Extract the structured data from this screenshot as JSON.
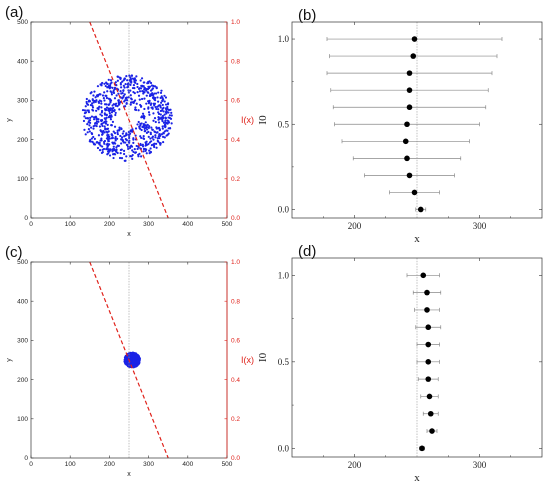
{
  "chart_data": [
    {
      "panel": "(a)",
      "type": "scatter",
      "title": "",
      "xlabel": "x",
      "ylabel": "y",
      "y2label": "I(x)",
      "xlim": [
        0,
        500
      ],
      "ylim": [
        0,
        500
      ],
      "y2lim": [
        0,
        1.0
      ],
      "xticks": [
        "0",
        "100",
        "200",
        "300",
        "400",
        "500"
      ],
      "yticks": [
        "0",
        "100",
        "200",
        "300",
        "400",
        "500"
      ],
      "y2ticks": [
        "0.0",
        "0.2",
        "0.4",
        "0.6",
        "0.8",
        "1.0"
      ],
      "scatter": {
        "shape": "ring",
        "count": 800,
        "cx": 245,
        "cy": 255,
        "inner_radius": 30,
        "outer_radius": 115,
        "color": "#1a22e6"
      },
      "vline_x": 250,
      "dashed_line": {
        "axis": "y2",
        "points": [
          [
            150,
            1.0
          ],
          [
            350,
            0.0
          ]
        ],
        "color": "#e0221b"
      }
    },
    {
      "panel": "(b)",
      "type": "errorbar",
      "title": "",
      "xlabel": "x",
      "ylabel": "I0",
      "xlim": [
        150,
        350
      ],
      "ylim": [
        -0.05,
        1.1
      ],
      "xticks": [
        "200",
        "300"
      ],
      "yticks": [
        "0.0",
        "0.5",
        "1.0"
      ],
      "vline_x": 250,
      "points": [
        {
          "y": 0.0,
          "x": 253,
          "err": 4
        },
        {
          "y": 0.1,
          "x": 248,
          "err": 20
        },
        {
          "y": 0.2,
          "x": 244,
          "err": 36
        },
        {
          "y": 0.3,
          "x": 242,
          "err": 43
        },
        {
          "y": 0.4,
          "x": 241,
          "err": 51
        },
        {
          "y": 0.5,
          "x": 242,
          "err": 58
        },
        {
          "y": 0.6,
          "x": 244,
          "err": 61
        },
        {
          "y": 0.7,
          "x": 244,
          "err": 63
        },
        {
          "y": 0.8,
          "x": 244,
          "err": 66
        },
        {
          "y": 0.9,
          "x": 247,
          "err": 67
        },
        {
          "y": 1.0,
          "x": 248,
          "err": 70
        }
      ]
    },
    {
      "panel": "(c)",
      "type": "scatter",
      "title": "",
      "xlabel": "x",
      "ylabel": "y",
      "y2label": "I(x)",
      "xlim": [
        0,
        500
      ],
      "ylim": [
        0,
        500
      ],
      "y2lim": [
        0,
        1.0
      ],
      "xticks": [
        "0",
        "100",
        "200",
        "300",
        "400",
        "500"
      ],
      "yticks": [
        "0",
        "100",
        "200",
        "300",
        "400",
        "500"
      ],
      "y2ticks": [
        "0.0",
        "0.2",
        "0.4",
        "0.6",
        "0.8",
        "1.0"
      ],
      "scatter": {
        "shape": "disk",
        "count": 500,
        "cx": 258,
        "cy": 250,
        "inner_radius": 0,
        "outer_radius": 20,
        "color": "#1a22e6"
      },
      "vline_x": 250,
      "dashed_line": {
        "axis": "y2",
        "points": [
          [
            150,
            1.0
          ],
          [
            350,
            0.0
          ]
        ],
        "color": "#e0221b"
      }
    },
    {
      "panel": "(d)",
      "type": "errorbar",
      "title": "",
      "xlabel": "x",
      "ylabel": "I0",
      "xlim": [
        150,
        350
      ],
      "ylim": [
        -0.05,
        1.1
      ],
      "xticks": [
        "200",
        "300"
      ],
      "yticks": [
        "0.0",
        "0.5",
        "1.0"
      ],
      "vline_x": 250,
      "points": [
        {
          "y": 0.0,
          "x": 254,
          "err": 2
        },
        {
          "y": 0.1,
          "x": 262,
          "err": 4
        },
        {
          "y": 0.2,
          "x": 261,
          "err": 6
        },
        {
          "y": 0.3,
          "x": 260,
          "err": 7
        },
        {
          "y": 0.4,
          "x": 259,
          "err": 8
        },
        {
          "y": 0.5,
          "x": 259,
          "err": 9
        },
        {
          "y": 0.6,
          "x": 259,
          "err": 9
        },
        {
          "y": 0.7,
          "x": 259,
          "err": 10
        },
        {
          "y": 0.8,
          "x": 258,
          "err": 10
        },
        {
          "y": 0.9,
          "x": 258,
          "err": 11
        },
        {
          "y": 1.0,
          "x": 255,
          "err": 13
        }
      ]
    }
  ]
}
